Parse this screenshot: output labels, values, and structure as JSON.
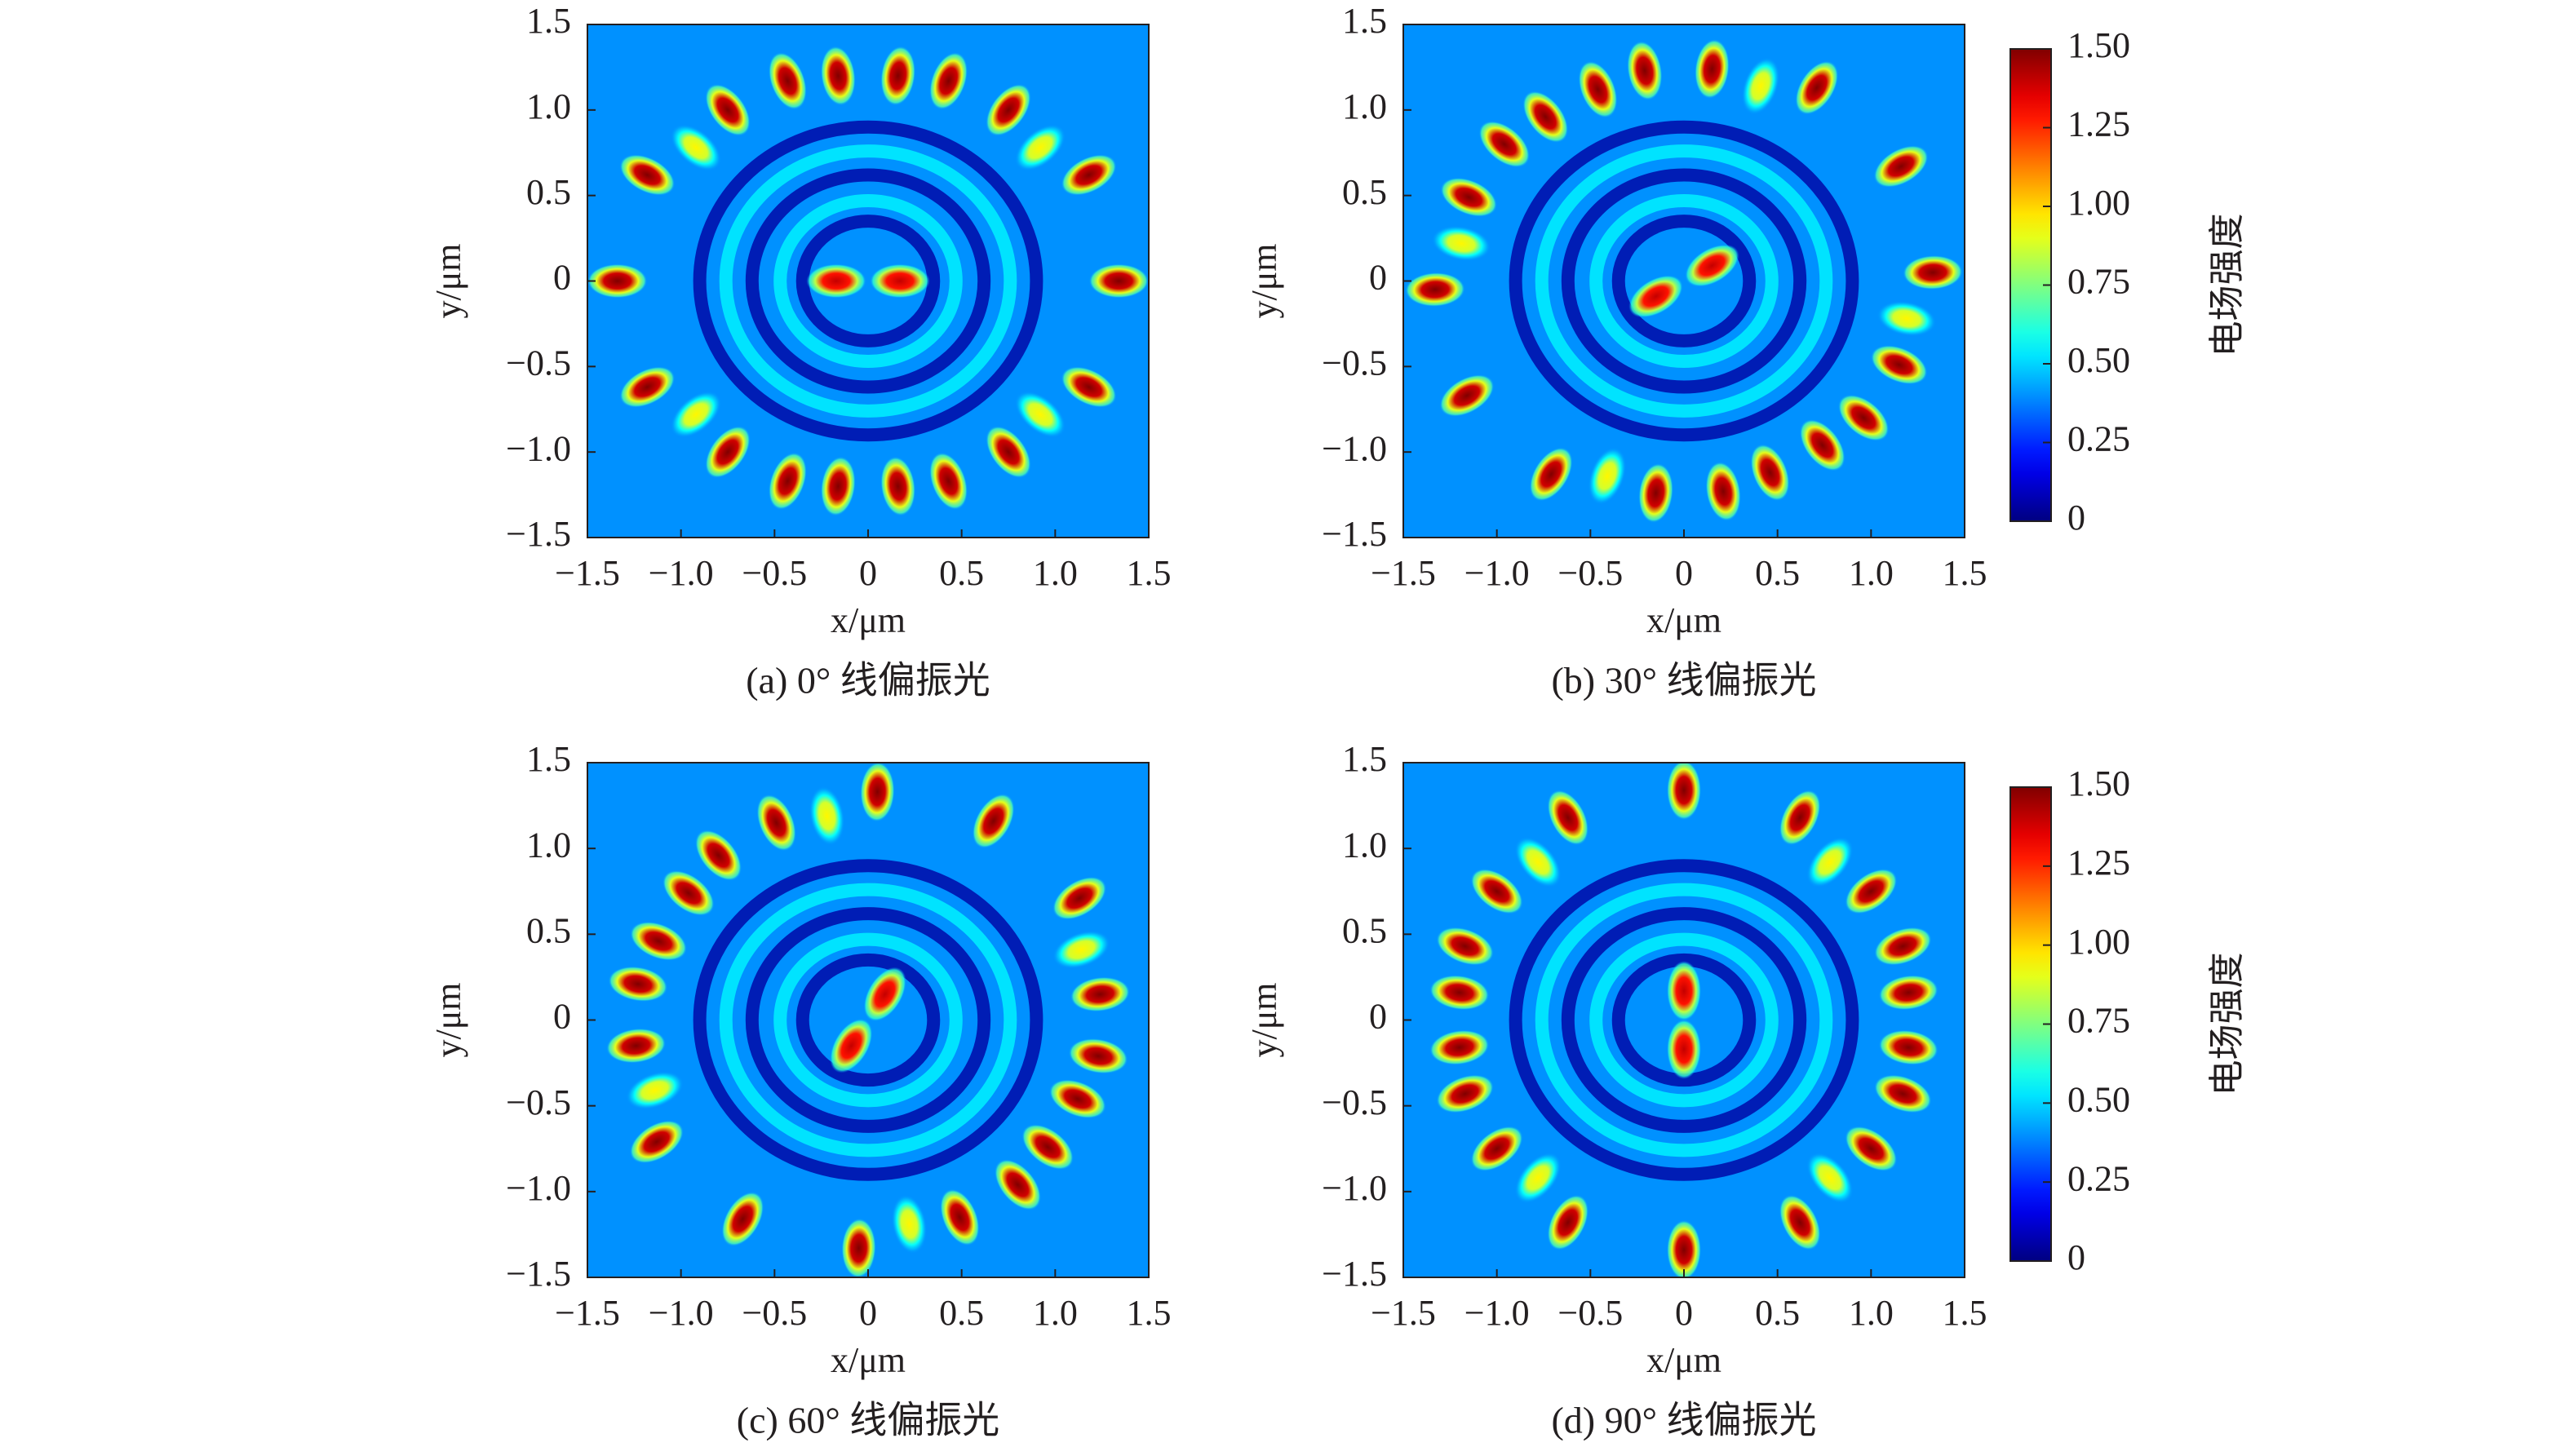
{
  "chart_data": [
    {
      "type": "heatmap",
      "caption": "(a) 0° 线偏振光",
      "xlabel": "x/μm",
      "ylabel": "y/μm",
      "xlim": [
        -1.5,
        1.5
      ],
      "ylim": [
        -1.5,
        1.5
      ],
      "xticks": [
        {
          "value": -1.5,
          "label": "−1.5"
        },
        {
          "value": -1.0,
          "label": "−1.0"
        },
        {
          "value": -0.5,
          "label": "−0.5"
        },
        0,
        0.5,
        {
          "value": 1.0,
          "label": "1.0"
        },
        1.5
      ],
      "yticks": [
        {
          "value": -1.5,
          "label": "−1.5"
        },
        {
          "value": -1.0,
          "label": "−1.0"
        },
        {
          "value": -0.5,
          "label": "−0.5"
        },
        0,
        0.5,
        {
          "value": 1.0,
          "label": "1.0"
        },
        1.5
      ],
      "background": 0.4,
      "rings": {
        "r": [
          0.35,
          0.47,
          0.62,
          0.76,
          0.9
        ],
        "values": [
          0.05,
          0.55,
          0.05,
          0.55,
          0.05
        ]
      },
      "spots": {
        "x": [
          -0.17,
          0.17,
          0.16,
          -0.16,
          0.16,
          -0.16,
          0.43,
          -0.43,
          0.43,
          -0.43,
          0.75,
          -0.75,
          0.75,
          -0.75,
          1.18,
          -1.18,
          1.18,
          -1.18,
          1.34,
          -1.34,
          0.92,
          -0.92,
          0.92,
          -0.92
        ],
        "y": [
          0,
          0,
          1.2,
          1.2,
          -1.2,
          -1.2,
          1.17,
          1.17,
          -1.17,
          -1.17,
          1.0,
          1.0,
          -1.0,
          -1.0,
          0.62,
          0.62,
          -0.62,
          -0.62,
          0,
          0,
          0.78,
          0.78,
          -0.78,
          -0.78
        ],
        "values": [
          1.4,
          1.4,
          1.5,
          1.5,
          1.5,
          1.5,
          1.5,
          1.5,
          1.5,
          1.5,
          1.5,
          1.5,
          1.5,
          1.5,
          1.5,
          1.5,
          1.5,
          1.5,
          1.5,
          1.5,
          0.95,
          0.95,
          0.95,
          0.95
        ]
      }
    },
    {
      "type": "heatmap",
      "caption": "(b) 30° 线偏振光",
      "xlabel": "x/μm",
      "ylabel": "y/μm",
      "xlim": [
        -1.5,
        1.5
      ],
      "ylim": [
        -1.5,
        1.5
      ],
      "xticks": [
        {
          "value": -1.5,
          "label": "−1.5"
        },
        {
          "value": -1.0,
          "label": "−1.0"
        },
        {
          "value": -0.5,
          "label": "−0.5"
        },
        0,
        0.5,
        {
          "value": 1.0,
          "label": "1.0"
        },
        1.5
      ],
      "yticks": [
        {
          "value": -1.5,
          "label": "−1.5"
        },
        {
          "value": -1.0,
          "label": "−1.0"
        },
        {
          "value": -0.5,
          "label": "−0.5"
        },
        0,
        0.5,
        {
          "value": 1.0,
          "label": "1.0"
        },
        1.5
      ],
      "background": 0.4,
      "rings": {
        "r": [
          0.35,
          0.47,
          0.62,
          0.76,
          0.9
        ],
        "values": [
          0.05,
          0.55,
          0.05,
          0.55,
          0.05
        ]
      },
      "spots": {
        "x": [
          -0.15,
          0.15,
          -0.46,
          -0.74,
          0.74,
          0.46,
          -0.21,
          -0.96,
          0.96,
          0.21,
          0.15,
          -1.15,
          1.15,
          -0.15,
          0.71,
          -1.33,
          1.33,
          -0.71,
          1.16,
          -1.16,
          0.41,
          -1.19,
          1.19,
          -0.41
        ],
        "y": [
          -0.09,
          0.09,
          1.12,
          0.96,
          -0.96,
          -1.12,
          1.23,
          0.8,
          -0.8,
          -1.23,
          1.24,
          0.49,
          -0.49,
          -1.24,
          1.13,
          -0.05,
          0.05,
          -1.13,
          0.67,
          -0.67,
          1.14,
          0.22,
          -0.22,
          -1.14
        ],
        "values": [
          1.4,
          1.4,
          1.5,
          1.5,
          1.5,
          1.5,
          1.5,
          1.5,
          1.5,
          1.5,
          1.5,
          1.5,
          1.5,
          1.5,
          1.5,
          1.5,
          1.5,
          1.5,
          1.5,
          1.5,
          0.95,
          0.95,
          0.95,
          0.95
        ]
      },
      "colorbar": {
        "label": "电场强度",
        "lim": [
          0,
          1.5
        ],
        "ticks": [
          0,
          0.25,
          {
            "value": 0.5,
            "label": "0.50"
          },
          0.75,
          {
            "value": 1.0,
            "label": "1.00"
          },
          1.25,
          {
            "value": 1.5,
            "label": "1.50"
          }
        ]
      }
    },
    {
      "type": "heatmap",
      "caption": "(c) 60° 线偏振光",
      "xlabel": "x/μm",
      "ylabel": "y/μm",
      "xlim": [
        -1.5,
        1.5
      ],
      "ylim": [
        -1.5,
        1.5
      ],
      "xticks": [
        {
          "value": -1.5,
          "label": "−1.5"
        },
        {
          "value": -1.0,
          "label": "−1.0"
        },
        {
          "value": -0.5,
          "label": "−0.5"
        },
        0,
        0.5,
        {
          "value": 1.0,
          "label": "1.0"
        },
        1.5
      ],
      "yticks": [
        {
          "value": -1.5,
          "label": "−1.5"
        },
        {
          "value": -1.0,
          "label": "−1.0"
        },
        {
          "value": -0.5,
          "label": "−0.5"
        },
        0,
        0.5,
        {
          "value": 1.0,
          "label": "1.0"
        },
        1.5
      ],
      "background": 0.4,
      "rings": {
        "r": [
          0.35,
          0.47,
          0.62,
          0.76,
          0.9
        ],
        "values": [
          0.05,
          0.55,
          0.05,
          0.55,
          0.05
        ]
      },
      "spots": {
        "x": [
          -0.09,
          0.09,
          -0.96,
          -1.12,
          1.12,
          0.96,
          -0.8,
          -1.23,
          1.23,
          0.8,
          -0.49,
          -1.24,
          1.24,
          0.49,
          0.05,
          -1.13,
          1.13,
          -0.05,
          0.67,
          -0.67,
          -0.22,
          -1.14,
          1.14,
          0.22
        ],
        "y": [
          -0.15,
          0.15,
          0.74,
          0.46,
          -0.46,
          -0.74,
          0.96,
          0.21,
          -0.21,
          -0.96,
          1.15,
          -0.15,
          0.15,
          -1.15,
          1.33,
          -0.71,
          0.71,
          -1.33,
          1.16,
          -1.16,
          1.19,
          -0.41,
          0.41,
          -1.19
        ],
        "values": [
          1.4,
          1.4,
          1.5,
          1.5,
          1.5,
          1.5,
          1.5,
          1.5,
          1.5,
          1.5,
          1.5,
          1.5,
          1.5,
          1.5,
          1.5,
          1.5,
          1.5,
          1.5,
          1.5,
          1.5,
          0.95,
          0.95,
          0.95,
          0.95
        ]
      }
    },
    {
      "type": "heatmap",
      "caption": "(d) 90° 线偏振光",
      "xlabel": "x/μm",
      "ylabel": "y/μm",
      "xlim": [
        -1.5,
        1.5
      ],
      "ylim": [
        -1.5,
        1.5
      ],
      "xticks": [
        {
          "value": -1.5,
          "label": "−1.5"
        },
        {
          "value": -1.0,
          "label": "−1.0"
        },
        {
          "value": -0.5,
          "label": "−0.5"
        },
        0,
        0.5,
        {
          "value": 1.0,
          "label": "1.0"
        },
        1.5
      ],
      "yticks": [
        {
          "value": -1.5,
          "label": "−1.5"
        },
        {
          "value": -1.0,
          "label": "−1.0"
        },
        {
          "value": -0.5,
          "label": "−0.5"
        },
        0,
        0.5,
        {
          "value": 1.0,
          "label": "1.0"
        },
        1.5
      ],
      "background": 0.4,
      "rings": {
        "r": [
          0.35,
          0.47,
          0.62,
          0.76,
          0.9
        ],
        "values": [
          0.05,
          0.55,
          0.05,
          0.55,
          0.05
        ]
      },
      "spots": {
        "x": [
          0,
          0,
          -1.2,
          -1.2,
          1.2,
          1.2,
          -1.17,
          -1.17,
          1.17,
          1.17,
          -1.0,
          -1.0,
          1.0,
          1.0,
          -0.62,
          -0.62,
          0.62,
          0.62,
          0,
          0,
          -0.78,
          -0.78,
          0.78,
          0.78
        ],
        "y": [
          -0.17,
          0.17,
          0.16,
          -0.16,
          0.16,
          -0.16,
          0.43,
          -0.43,
          0.43,
          -0.43,
          0.75,
          -0.75,
          0.75,
          -0.75,
          1.18,
          -1.18,
          1.18,
          -1.18,
          1.34,
          -1.34,
          0.92,
          -0.92,
          0.92,
          -0.92
        ],
        "values": [
          1.4,
          1.4,
          1.5,
          1.5,
          1.5,
          1.5,
          1.5,
          1.5,
          1.5,
          1.5,
          1.5,
          1.5,
          1.5,
          1.5,
          1.5,
          1.5,
          1.5,
          1.5,
          1.5,
          1.5,
          0.95,
          0.95,
          0.95,
          0.95
        ]
      },
      "colorbar": {
        "label": "电场强度",
        "lim": [
          0,
          1.5
        ],
        "ticks": [
          0,
          0.25,
          {
            "value": 0.5,
            "label": "0.50"
          },
          0.75,
          {
            "value": 1.0,
            "label": "1.00"
          },
          1.25,
          {
            "value": 1.5,
            "label": "1.50"
          }
        ]
      }
    }
  ]
}
